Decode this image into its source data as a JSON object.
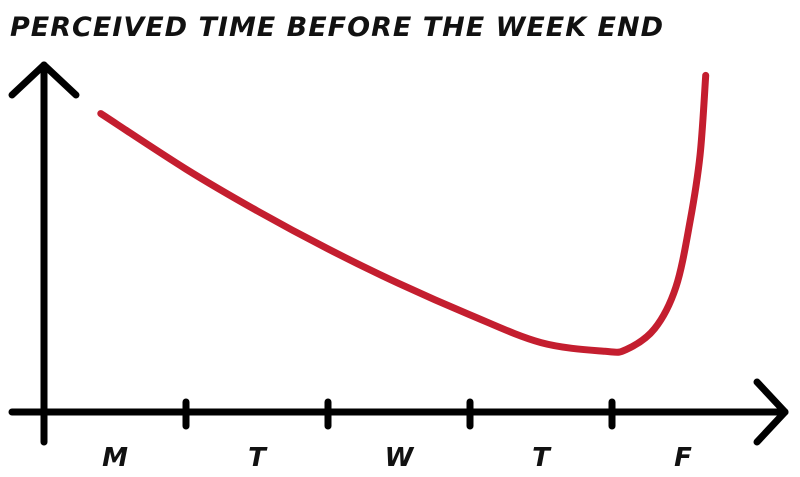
{
  "chart_data": {
    "type": "line",
    "title": "PERCEIVED TIME BEFORE THE WEEK END",
    "xlabel": "",
    "ylabel": "",
    "categories": [
      "M",
      "T",
      "W",
      "T",
      "F"
    ],
    "x_range": [
      0,
      5
    ],
    "y_range": [
      0,
      1
    ],
    "grid": false,
    "legend": "none",
    "series": [
      {
        "color": "#c41e2f",
        "points": [
          [
            0.4,
            0.86
          ],
          [
            1.0,
            0.7
          ],
          [
            1.5,
            0.58
          ],
          [
            2.0,
            0.47
          ],
          [
            2.5,
            0.37
          ],
          [
            3.0,
            0.28
          ],
          [
            3.5,
            0.2
          ],
          [
            3.95,
            0.175
          ],
          [
            4.1,
            0.18
          ],
          [
            4.3,
            0.24
          ],
          [
            4.45,
            0.36
          ],
          [
            4.55,
            0.55
          ],
          [
            4.62,
            0.74
          ],
          [
            4.66,
            0.97
          ]
        ]
      }
    ],
    "colors": {
      "axis": "#000000",
      "curve": "#c41e2f",
      "text": "#111111"
    }
  }
}
